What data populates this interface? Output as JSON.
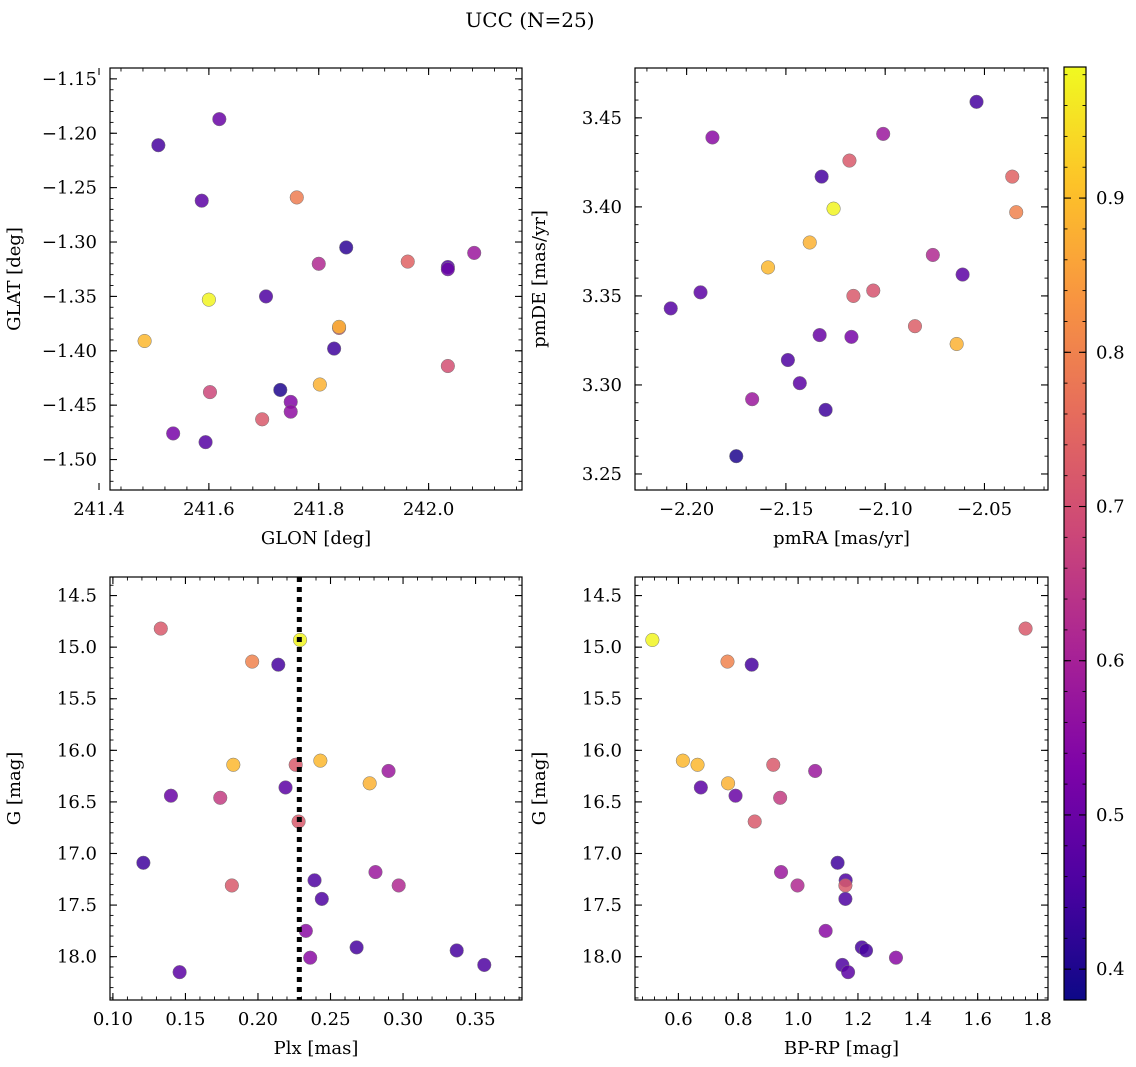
{
  "figure": {
    "title": "UCC (N=25)"
  },
  "colorbar": {
    "colormap": "plasma",
    "range": [
      0.38,
      0.985
    ],
    "ticks": [
      "0.4",
      "0.5",
      "0.6",
      "0.7",
      "0.8",
      "0.9"
    ],
    "tick_values": [
      0.4,
      0.5,
      0.6,
      0.7,
      0.8,
      0.9
    ]
  },
  "chart_data": [
    {
      "type": "scatter",
      "title": "",
      "xlabel": "GLON [deg]",
      "ylabel": "GLAT [deg]",
      "xlim": [
        241.42,
        242.17
      ],
      "ylim": [
        -1.528,
        -1.14
      ],
      "xticks": [
        241.4,
        241.6,
        241.8,
        242.0
      ],
      "xtick_labels": [
        "241.4",
        "241.6",
        "241.8",
        "242.0"
      ],
      "yticks": [
        -1.15,
        -1.2,
        -1.25,
        -1.3,
        -1.35,
        -1.4,
        -1.45,
        -1.5
      ],
      "ytick_labels": [
        "−1.15",
        "−1.20",
        "−1.25",
        "−1.30",
        "−1.35",
        "−1.40",
        "−1.45",
        "−1.50"
      ],
      "grid": false,
      "points": [
        {
          "x": 241.508,
          "y": -1.211,
          "c": 0.45
        },
        {
          "x": 241.619,
          "y": -1.187,
          "c": 0.5
        },
        {
          "x": 241.587,
          "y": -1.262,
          "c": 0.48
        },
        {
          "x": 241.76,
          "y": -1.259,
          "c": 0.79
        },
        {
          "x": 241.85,
          "y": -1.305,
          "c": 0.42
        },
        {
          "x": 241.8,
          "y": -1.32,
          "c": 0.62
        },
        {
          "x": 241.962,
          "y": -1.318,
          "c": 0.74
        },
        {
          "x": 242.035,
          "y": -1.323,
          "c": 0.46
        },
        {
          "x": 242.035,
          "y": -1.325,
          "c": 0.5
        },
        {
          "x": 242.083,
          "y": -1.31,
          "c": 0.58
        },
        {
          "x": 241.6,
          "y": -1.353,
          "c": 0.98
        },
        {
          "x": 241.704,
          "y": -1.35,
          "c": 0.46
        },
        {
          "x": 241.483,
          "y": -1.391,
          "c": 0.89
        },
        {
          "x": 241.837,
          "y": -1.379,
          "c": 0.72
        },
        {
          "x": 241.837,
          "y": -1.378,
          "c": 0.88
        },
        {
          "x": 241.828,
          "y": -1.398,
          "c": 0.44
        },
        {
          "x": 242.035,
          "y": -1.414,
          "c": 0.7
        },
        {
          "x": 241.602,
          "y": -1.438,
          "c": 0.68
        },
        {
          "x": 241.73,
          "y": -1.436,
          "c": 0.4
        },
        {
          "x": 241.802,
          "y": -1.431,
          "c": 0.88
        },
        {
          "x": 241.749,
          "y": -1.447,
          "c": 0.54
        },
        {
          "x": 241.749,
          "y": -1.456,
          "c": 0.56
        },
        {
          "x": 241.697,
          "y": -1.463,
          "c": 0.72
        },
        {
          "x": 241.535,
          "y": -1.476,
          "c": 0.52
        },
        {
          "x": 241.594,
          "y": -1.484,
          "c": 0.47
        }
      ]
    },
    {
      "type": "scatter",
      "title": "",
      "xlabel": "pmRA [mas/yr]",
      "ylabel": "pmDE [mas/yr]",
      "xlim": [
        -2.226,
        -2.018
      ],
      "ylim": [
        3.241,
        3.478
      ],
      "xticks": [
        -2.2,
        -2.15,
        -2.1,
        -2.05
      ],
      "xtick_labels": [
        "−2.20",
        "−2.15",
        "−2.10",
        "−2.05"
      ],
      "yticks": [
        3.25,
        3.3,
        3.35,
        3.4,
        3.45
      ],
      "ytick_labels": [
        "3.25",
        "3.30",
        "3.35",
        "3.40",
        "3.45"
      ],
      "grid": false,
      "points": [
        {
          "x": -2.054,
          "y": 3.459,
          "c": 0.45
        },
        {
          "x": -2.187,
          "y": 3.439,
          "c": 0.55
        },
        {
          "x": -2.101,
          "y": 3.441,
          "c": 0.58
        },
        {
          "x": -2.118,
          "y": 3.426,
          "c": 0.72
        },
        {
          "x": -2.132,
          "y": 3.417,
          "c": 0.45
        },
        {
          "x": -2.036,
          "y": 3.417,
          "c": 0.74
        },
        {
          "x": -2.034,
          "y": 3.397,
          "c": 0.8
        },
        {
          "x": -2.126,
          "y": 3.399,
          "c": 0.98
        },
        {
          "x": -2.138,
          "y": 3.38,
          "c": 0.88
        },
        {
          "x": -2.159,
          "y": 3.366,
          "c": 0.89
        },
        {
          "x": -2.076,
          "y": 3.373,
          "c": 0.62
        },
        {
          "x": -2.061,
          "y": 3.362,
          "c": 0.48
        },
        {
          "x": -2.208,
          "y": 3.343,
          "c": 0.47
        },
        {
          "x": -2.193,
          "y": 3.352,
          "c": 0.48
        },
        {
          "x": -2.116,
          "y": 3.35,
          "c": 0.72
        },
        {
          "x": -2.106,
          "y": 3.353,
          "c": 0.71
        },
        {
          "x": -2.085,
          "y": 3.333,
          "c": 0.73
        },
        {
          "x": -2.064,
          "y": 3.323,
          "c": 0.88
        },
        {
          "x": -2.133,
          "y": 3.328,
          "c": 0.5
        },
        {
          "x": -2.117,
          "y": 3.327,
          "c": 0.52
        },
        {
          "x": -2.149,
          "y": 3.314,
          "c": 0.46
        },
        {
          "x": -2.143,
          "y": 3.301,
          "c": 0.48
        },
        {
          "x": -2.167,
          "y": 3.292,
          "c": 0.58
        },
        {
          "x": -2.13,
          "y": 3.286,
          "c": 0.44
        },
        {
          "x": -2.175,
          "y": 3.26,
          "c": 0.4
        }
      ]
    },
    {
      "type": "scatter",
      "title": "",
      "xlabel": "Plx [mas]",
      "ylabel": "G [mag]",
      "xlim": [
        0.098,
        0.382
      ],
      "ylim": [
        18.42,
        14.32
      ],
      "y_inverted": true,
      "xticks": [
        0.1,
        0.15,
        0.2,
        0.25,
        0.3,
        0.35
      ],
      "xtick_labels": [
        "0.10",
        "0.15",
        "0.20",
        "0.25",
        "0.30",
        "0.35"
      ],
      "yticks": [
        14.5,
        15.0,
        15.5,
        16.0,
        16.5,
        17.0,
        17.5,
        18.0
      ],
      "ytick_labels": [
        "14.5",
        "15.0",
        "15.5",
        "16.0",
        "16.5",
        "17.0",
        "17.5",
        "18.0"
      ],
      "grid": false,
      "vline": {
        "x": 0.2285,
        "style": "dotted",
        "color": "#000000"
      },
      "points": [
        {
          "x": 0.133,
          "y": 14.82,
          "c": 0.72
        },
        {
          "x": 0.229,
          "y": 14.93,
          "c": 0.98
        },
        {
          "x": 0.196,
          "y": 15.14,
          "c": 0.8
        },
        {
          "x": 0.214,
          "y": 15.17,
          "c": 0.45
        },
        {
          "x": 0.183,
          "y": 16.14,
          "c": 0.89
        },
        {
          "x": 0.226,
          "y": 16.14,
          "c": 0.72
        },
        {
          "x": 0.243,
          "y": 16.1,
          "c": 0.89
        },
        {
          "x": 0.29,
          "y": 16.2,
          "c": 0.58
        },
        {
          "x": 0.277,
          "y": 16.32,
          "c": 0.88
        },
        {
          "x": 0.219,
          "y": 16.36,
          "c": 0.48
        },
        {
          "x": 0.14,
          "y": 16.44,
          "c": 0.5
        },
        {
          "x": 0.174,
          "y": 16.46,
          "c": 0.66
        },
        {
          "x": 0.228,
          "y": 16.69,
          "c": 0.72
        },
        {
          "x": 0.121,
          "y": 17.09,
          "c": 0.44
        },
        {
          "x": 0.182,
          "y": 17.31,
          "c": 0.72
        },
        {
          "x": 0.281,
          "y": 17.18,
          "c": 0.58
        },
        {
          "x": 0.297,
          "y": 17.31,
          "c": 0.62
        },
        {
          "x": 0.239,
          "y": 17.26,
          "c": 0.46
        },
        {
          "x": 0.244,
          "y": 17.44,
          "c": 0.46
        },
        {
          "x": 0.233,
          "y": 17.75,
          "c": 0.55
        },
        {
          "x": 0.236,
          "y": 18.01,
          "c": 0.55
        },
        {
          "x": 0.268,
          "y": 17.91,
          "c": 0.45
        },
        {
          "x": 0.337,
          "y": 17.94,
          "c": 0.45
        },
        {
          "x": 0.356,
          "y": 18.08,
          "c": 0.46
        },
        {
          "x": 0.146,
          "y": 18.15,
          "c": 0.48
        }
      ]
    },
    {
      "type": "scatter",
      "title": "",
      "xlabel": "BP-RP [mag]",
      "ylabel": "G [mag]",
      "xlim": [
        0.455,
        1.835
      ],
      "ylim": [
        18.42,
        14.32
      ],
      "y_inverted": true,
      "xticks": [
        0.6,
        0.8,
        1.0,
        1.2,
        1.4,
        1.6,
        1.8
      ],
      "xtick_labels": [
        "0.6",
        "0.8",
        "1.0",
        "1.2",
        "1.4",
        "1.6",
        "1.8"
      ],
      "yticks": [
        14.5,
        15.0,
        15.5,
        16.0,
        16.5,
        17.0,
        17.5,
        18.0
      ],
      "ytick_labels": [
        "14.5",
        "15.0",
        "15.5",
        "16.0",
        "16.5",
        "17.0",
        "17.5",
        "18.0"
      ],
      "grid": false,
      "points": [
        {
          "x": 0.513,
          "y": 14.93,
          "c": 0.98
        },
        {
          "x": 1.76,
          "y": 14.82,
          "c": 0.72
        },
        {
          "x": 0.764,
          "y": 15.14,
          "c": 0.8
        },
        {
          "x": 0.845,
          "y": 15.17,
          "c": 0.45
        },
        {
          "x": 0.615,
          "y": 16.1,
          "c": 0.89
        },
        {
          "x": 0.664,
          "y": 16.14,
          "c": 0.89
        },
        {
          "x": 0.917,
          "y": 16.14,
          "c": 0.72
        },
        {
          "x": 1.057,
          "y": 16.2,
          "c": 0.58
        },
        {
          "x": 0.766,
          "y": 16.32,
          "c": 0.88
        },
        {
          "x": 0.675,
          "y": 16.36,
          "c": 0.48
        },
        {
          "x": 0.791,
          "y": 16.44,
          "c": 0.5
        },
        {
          "x": 0.94,
          "y": 16.46,
          "c": 0.66
        },
        {
          "x": 0.855,
          "y": 16.69,
          "c": 0.72
        },
        {
          "x": 1.132,
          "y": 17.09,
          "c": 0.44
        },
        {
          "x": 0.943,
          "y": 17.18,
          "c": 0.58
        },
        {
          "x": 1.159,
          "y": 17.26,
          "c": 0.46
        },
        {
          "x": 1.158,
          "y": 17.31,
          "c": 0.72
        },
        {
          "x": 0.998,
          "y": 17.31,
          "c": 0.62
        },
        {
          "x": 1.158,
          "y": 17.44,
          "c": 0.46
        },
        {
          "x": 1.092,
          "y": 17.75,
          "c": 0.55
        },
        {
          "x": 1.213,
          "y": 17.91,
          "c": 0.45
        },
        {
          "x": 1.227,
          "y": 17.94,
          "c": 0.45
        },
        {
          "x": 1.327,
          "y": 18.01,
          "c": 0.55
        },
        {
          "x": 1.148,
          "y": 18.08,
          "c": 0.46
        },
        {
          "x": 1.167,
          "y": 18.15,
          "c": 0.48
        }
      ]
    }
  ]
}
